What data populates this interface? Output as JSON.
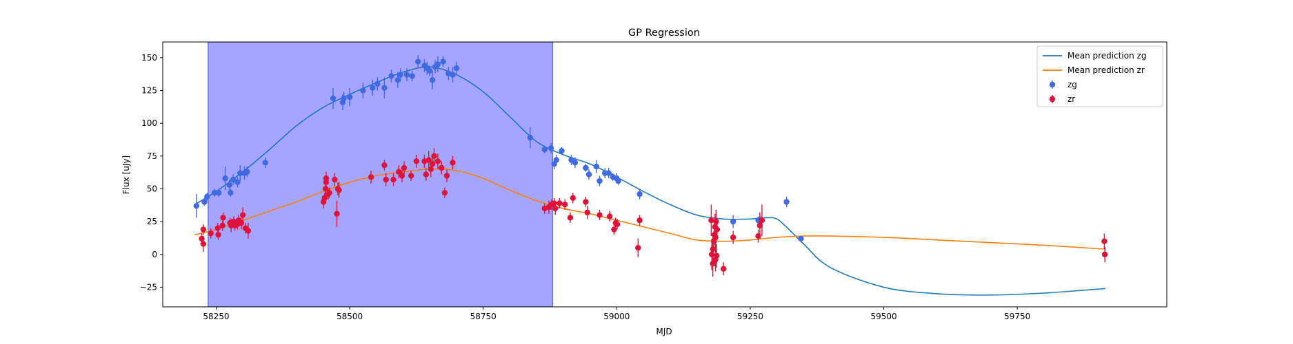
{
  "chart_data": {
    "type": "scatter",
    "title": "GP Regression",
    "xlabel": "MJD",
    "ylabel": "Flux [uJy]",
    "xlim": [
      58150,
      60030
    ],
    "ylim": [
      -40,
      162
    ],
    "xticks": [
      58250,
      58500,
      58750,
      59000,
      59250,
      59500,
      59750
    ],
    "yticks": [
      -25,
      0,
      25,
      50,
      75,
      100,
      125,
      150
    ],
    "grid": false,
    "legend_position": "top-right",
    "shaded_region": {
      "x_start": 58235,
      "x_end": 58880,
      "color": "#a5a5ff"
    },
    "lines": [
      {
        "name": "Mean prediction zg",
        "color": "#1f77b4",
        "x": [
          58210,
          58250,
          58300,
          58350,
          58400,
          58450,
          58500,
          58550,
          58600,
          58650,
          58700,
          58750,
          58800,
          58850,
          58900,
          58950,
          59000,
          59050,
          59100,
          59150,
          59200,
          59250,
          59280,
          59300,
          59320,
          59350,
          59400,
          59500,
          59600,
          59700,
          59800,
          59900,
          59915
        ],
        "y": [
          38,
          48,
          63,
          80,
          98,
          112,
          122,
          131,
          139,
          143,
          137,
          124,
          105,
          86,
          76,
          69,
          59,
          48,
          38,
          30,
          27,
          27,
          28,
          27,
          20,
          8,
          -10,
          -25,
          -30,
          -31,
          -29.5,
          -26.5,
          -26
        ]
      },
      {
        "name": "Mean prediction zr",
        "color": "#ff7f0e",
        "x": [
          58210,
          58250,
          58300,
          58350,
          58400,
          58450,
          58500,
          58550,
          58600,
          58650,
          58700,
          58750,
          58800,
          58850,
          58900,
          58950,
          59000,
          59050,
          59100,
          59150,
          59200,
          59250,
          59300,
          59350,
          59400,
          59500,
          59600,
          59700,
          59800,
          59915
        ],
        "y": [
          15,
          19,
          26,
          33,
          40,
          48,
          55,
          60,
          63,
          65,
          64,
          58,
          49,
          41,
          35,
          31,
          26,
          21,
          16,
          11,
          10,
          11,
          13,
          14,
          14,
          13,
          11,
          9,
          7,
          4
        ]
      }
    ],
    "series": [
      {
        "name": "zg",
        "color": "#4169e1",
        "points": [
          [
            58213,
            37,
            9
          ],
          [
            58228,
            40,
            3
          ],
          [
            58233,
            44,
            3
          ],
          [
            58247,
            47,
            3
          ],
          [
            58255,
            47,
            3
          ],
          [
            58267,
            58,
            9
          ],
          [
            58275,
            53,
            4
          ],
          [
            58277,
            47,
            3
          ],
          [
            58282,
            57,
            4
          ],
          [
            58290,
            55,
            4
          ],
          [
            58295,
            62,
            6
          ],
          [
            58303,
            62,
            5
          ],
          [
            58308,
            63,
            4
          ],
          [
            58342,
            70,
            4
          ],
          [
            58469,
            119,
            8
          ],
          [
            58487,
            116,
            6
          ],
          [
            58489,
            119,
            5
          ],
          [
            58500,
            120,
            7
          ],
          [
            58525,
            125,
            6
          ],
          [
            58543,
            127,
            6
          ],
          [
            58552,
            130,
            5
          ],
          [
            58565,
            127,
            8
          ],
          [
            58578,
            136,
            5
          ],
          [
            58590,
            133,
            6
          ],
          [
            58595,
            137,
            5
          ],
          [
            58607,
            137,
            5
          ],
          [
            58617,
            136,
            4
          ],
          [
            58628,
            147,
            5
          ],
          [
            58640,
            144,
            5
          ],
          [
            58645,
            142,
            5
          ],
          [
            58650,
            140,
            4
          ],
          [
            58655,
            133,
            7
          ],
          [
            58660,
            143,
            5
          ],
          [
            58665,
            145,
            6
          ],
          [
            58675,
            147,
            4
          ],
          [
            58685,
            138,
            5
          ],
          [
            58693,
            137,
            6
          ],
          [
            58700,
            142,
            5
          ],
          [
            58838,
            89,
            8
          ],
          [
            58865,
            80,
            3
          ],
          [
            58877,
            81,
            4
          ],
          [
            58883,
            69,
            4
          ],
          [
            58887,
            72,
            4
          ],
          [
            58897,
            79,
            3
          ],
          [
            58915,
            72,
            4
          ],
          [
            58922,
            70,
            4
          ],
          [
            58942,
            66,
            3
          ],
          [
            58948,
            61,
            4
          ],
          [
            58962,
            67,
            5
          ],
          [
            58968,
            56,
            4
          ],
          [
            58978,
            62,
            4
          ],
          [
            58985,
            62,
            4
          ],
          [
            58993,
            59,
            3
          ],
          [
            59000,
            58,
            4
          ],
          [
            59003,
            56,
            3
          ],
          [
            59043,
            46,
            4
          ],
          [
            59218,
            25,
            5
          ],
          [
            59265,
            26,
            3
          ],
          [
            59270,
            26,
            3
          ],
          [
            59318,
            40,
            4
          ],
          [
            59345,
            12,
            2
          ]
        ]
      },
      {
        "name": "zr",
        "color": "#dc143c",
        "points": [
          [
            58223,
            12,
            4
          ],
          [
            58226,
            19,
            4
          ],
          [
            58226,
            8,
            6
          ],
          [
            58240,
            16,
            4
          ],
          [
            58253,
            20,
            4
          ],
          [
            58254,
            15,
            4
          ],
          [
            58262,
            22,
            4
          ],
          [
            58263,
            28,
            4
          ],
          [
            58276,
            24,
            4
          ],
          [
            58278,
            22,
            5
          ],
          [
            58283,
            25,
            4
          ],
          [
            58285,
            22,
            4
          ],
          [
            58290,
            23,
            4
          ],
          [
            58292,
            26,
            4
          ],
          [
            58297,
            24,
            5
          ],
          [
            58300,
            30,
            6
          ],
          [
            58305,
            20,
            4
          ],
          [
            58310,
            18,
            6
          ],
          [
            58451,
            40,
            5
          ],
          [
            58453,
            43,
            4
          ],
          [
            58455,
            50,
            8
          ],
          [
            58456,
            55,
            5
          ],
          [
            58456,
            58,
            5
          ],
          [
            58460,
            46,
            4
          ],
          [
            58462,
            47,
            4
          ],
          [
            58472,
            57,
            5
          ],
          [
            58476,
            31,
            10
          ],
          [
            58478,
            50,
            5
          ],
          [
            58480,
            49,
            6
          ],
          [
            58540,
            59,
            5
          ],
          [
            58565,
            68,
            4
          ],
          [
            58568,
            57,
            5
          ],
          [
            58582,
            57,
            5
          ],
          [
            58592,
            63,
            5
          ],
          [
            58598,
            60,
            5
          ],
          [
            58602,
            66,
            5
          ],
          [
            58615,
            60,
            4
          ],
          [
            58625,
            71,
            5
          ],
          [
            58640,
            71,
            5
          ],
          [
            58643,
            61,
            5
          ],
          [
            58648,
            72,
            7
          ],
          [
            58652,
            65,
            6
          ],
          [
            58655,
            69,
            5
          ],
          [
            58658,
            75,
            6
          ],
          [
            58665,
            71,
            6
          ],
          [
            58672,
            66,
            5
          ],
          [
            58678,
            47,
            4
          ],
          [
            58682,
            60,
            5
          ],
          [
            58693,
            70,
            5
          ],
          [
            58865,
            35,
            4
          ],
          [
            58873,
            36,
            5
          ],
          [
            58878,
            38,
            4
          ],
          [
            58883,
            39,
            4
          ],
          [
            58885,
            35,
            5
          ],
          [
            58893,
            39,
            4
          ],
          [
            58903,
            38,
            4
          ],
          [
            58913,
            28,
            4
          ],
          [
            58918,
            43,
            4
          ],
          [
            58942,
            40,
            4
          ],
          [
            58945,
            32,
            5
          ],
          [
            58968,
            30,
            4
          ],
          [
            58987,
            29,
            4
          ],
          [
            58995,
            19,
            4
          ],
          [
            58998,
            24,
            4
          ],
          [
            59001,
            23,
            4
          ],
          [
            59040,
            5,
            7
          ],
          [
            59043,
            26,
            4
          ],
          [
            59177,
            26,
            12
          ],
          [
            59178,
            0,
            12
          ],
          [
            59180,
            4,
            10
          ],
          [
            59180,
            -7,
            10
          ],
          [
            59182,
            10,
            8
          ],
          [
            59183,
            15,
            8
          ],
          [
            59184,
            21,
            10
          ],
          [
            59185,
            13,
            8
          ],
          [
            59185,
            -4,
            9
          ],
          [
            59186,
            25,
            9
          ],
          [
            59187,
            -1,
            9
          ],
          [
            59188,
            19,
            8
          ],
          [
            59200,
            -11,
            5
          ],
          [
            59218,
            13,
            5
          ],
          [
            59265,
            14,
            5
          ],
          [
            59268,
            22,
            10
          ],
          [
            59272,
            26,
            12
          ],
          [
            59913,
            10,
            6
          ],
          [
            59914,
            0,
            6
          ]
        ]
      }
    ]
  }
}
